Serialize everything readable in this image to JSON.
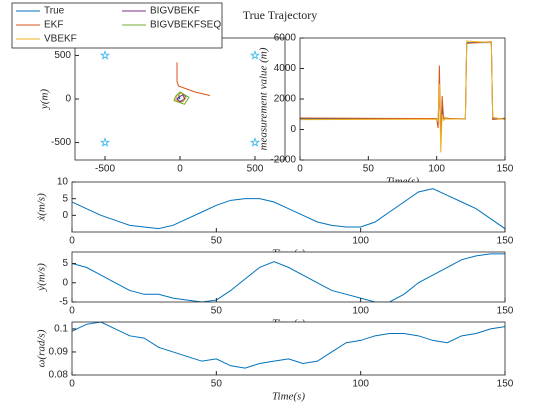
{
  "chart_data": [
    {
      "type": "line",
      "title": "True Trajectory",
      "ylabel": "y(m)",
      "xlim": [
        -700,
        700
      ],
      "ylim": [
        -700,
        700
      ],
      "xticks": [
        -500,
        0,
        500
      ],
      "yticks": [
        -500,
        0,
        500
      ],
      "series": [
        {
          "name": "True",
          "color": "#0072BD",
          "x": [
            0,
            -10,
            10,
            40,
            20,
            -20,
            -10,
            0
          ],
          "values": [
            0,
            60,
            70,
            30,
            -30,
            -20,
            20,
            0
          ]
        },
        {
          "name": "EKF",
          "color": "#D95319",
          "x": [
            -20,
            -20,
            -10,
            100,
            200
          ],
          "values": [
            420,
            200,
            150,
            80,
            40
          ]
        },
        {
          "name": "VBEKF",
          "color": "#EDB120",
          "x": [
            -20,
            10,
            40,
            10,
            -30,
            -20
          ],
          "values": [
            40,
            70,
            10,
            -40,
            -10,
            40
          ]
        },
        {
          "name": "BIGVBEKF",
          "color": "#7E2F8E",
          "x": [
            -10,
            20,
            30,
            0,
            -20,
            -10
          ],
          "values": [
            20,
            50,
            0,
            -30,
            0,
            20
          ]
        },
        {
          "name": "BIGVBEKFSEQ",
          "color": "#77AC30",
          "x": [
            -30,
            0,
            60,
            30,
            -40,
            -30
          ],
          "values": [
            30,
            80,
            20,
            -60,
            -20,
            30
          ]
        }
      ],
      "markers": {
        "color": "#4DBEEE",
        "x": [
          -500,
          500,
          -500,
          500
        ],
        "y": [
          500,
          500,
          -500,
          -500
        ]
      }
    },
    {
      "type": "line",
      "xlabel": "Time(s)",
      "ylabel": "measurement value (m)",
      "xlim": [
        0,
        150
      ],
      "ylim": [
        -2000,
        6000
      ],
      "xticks": [
        0,
        50,
        100,
        150
      ],
      "yticks": [
        -2000,
        0,
        2000,
        4000,
        6000
      ],
      "x": [
        0,
        100,
        101,
        102,
        103,
        104,
        105,
        106,
        110,
        121,
        122,
        140,
        141,
        150
      ],
      "series": [
        {
          "color": "#0072BD",
          "values": [
            700,
            700,
            300,
            2500,
            -400,
            1500,
            700,
            700,
            700,
            700,
            5700,
            5700,
            700,
            700
          ]
        },
        {
          "color": "#D95319",
          "values": [
            750,
            720,
            100,
            4200,
            -800,
            2200,
            800,
            750,
            720,
            700,
            5650,
            5750,
            650,
            750
          ]
        },
        {
          "color": "#EDB120",
          "values": [
            650,
            680,
            500,
            3000,
            -1500,
            1000,
            600,
            700,
            680,
            700,
            5800,
            5700,
            800,
            650
          ]
        }
      ]
    },
    {
      "type": "line",
      "xlabel": "Time(s)",
      "ylabel": "ẋ(m/s)",
      "xlim": [
        0,
        150
      ],
      "ylim": [
        -5,
        10
      ],
      "xticks": [
        0,
        50,
        100,
        150
      ],
      "yticks": [
        0,
        5,
        10
      ],
      "x": [
        0,
        5,
        10,
        15,
        20,
        25,
        30,
        35,
        40,
        45,
        50,
        55,
        60,
        65,
        70,
        75,
        80,
        85,
        90,
        95,
        100,
        105,
        110,
        115,
        120,
        125,
        130,
        135,
        140,
        145,
        150
      ],
      "series": [
        {
          "color": "#0072BD",
          "values": [
            4,
            2,
            0,
            -1.5,
            -3,
            -3.5,
            -4,
            -3,
            -1,
            1,
            3,
            4.5,
            5,
            5,
            4,
            2,
            0,
            -2,
            -3,
            -3.5,
            -3.5,
            -2,
            1,
            4,
            7,
            8,
            6,
            4,
            2,
            -1,
            -4
          ]
        }
      ]
    },
    {
      "type": "line",
      "xlabel": "Time(s)",
      "ylabel": "ẏ(m/s)",
      "xlim": [
        0,
        150
      ],
      "ylim": [
        -5,
        8
      ],
      "xticks": [
        0,
        50,
        100,
        150
      ],
      "yticks": [
        -5,
        0,
        5
      ],
      "x": [
        0,
        5,
        10,
        15,
        20,
        25,
        30,
        35,
        40,
        45,
        50,
        55,
        60,
        65,
        70,
        75,
        80,
        85,
        90,
        95,
        100,
        105,
        110,
        115,
        120,
        125,
        130,
        135,
        140,
        145,
        150
      ],
      "series": [
        {
          "color": "#0072BD",
          "values": [
            5,
            4,
            2,
            0,
            -2,
            -3,
            -3,
            -4,
            -4.5,
            -5,
            -4.5,
            -2,
            1,
            4,
            5.5,
            4,
            2,
            0,
            -2,
            -3,
            -4,
            -5,
            -5,
            -3,
            0,
            2,
            4,
            6,
            7,
            7.5,
            7.5
          ]
        }
      ]
    },
    {
      "type": "line",
      "xlabel": "Time(s)",
      "ylabel": "ω(rad/s)",
      "xlim": [
        0,
        150
      ],
      "ylim": [
        0.08,
        0.103
      ],
      "xticks": [
        0,
        50,
        100,
        150
      ],
      "yticks": [
        0.08,
        0.09,
        0.1
      ],
      "x": [
        0,
        5,
        10,
        15,
        20,
        25,
        30,
        35,
        40,
        45,
        50,
        55,
        60,
        65,
        70,
        75,
        80,
        85,
        90,
        95,
        100,
        105,
        110,
        115,
        120,
        125,
        130,
        135,
        140,
        145,
        150
      ],
      "series": [
        {
          "color": "#0072BD",
          "values": [
            0.099,
            0.102,
            0.103,
            0.1,
            0.097,
            0.096,
            0.092,
            0.09,
            0.088,
            0.086,
            0.087,
            0.084,
            0.083,
            0.085,
            0.086,
            0.087,
            0.085,
            0.086,
            0.09,
            0.094,
            0.095,
            0.097,
            0.098,
            0.098,
            0.097,
            0.095,
            0.094,
            0.097,
            0.098,
            0.1,
            0.101
          ]
        }
      ]
    }
  ]
}
